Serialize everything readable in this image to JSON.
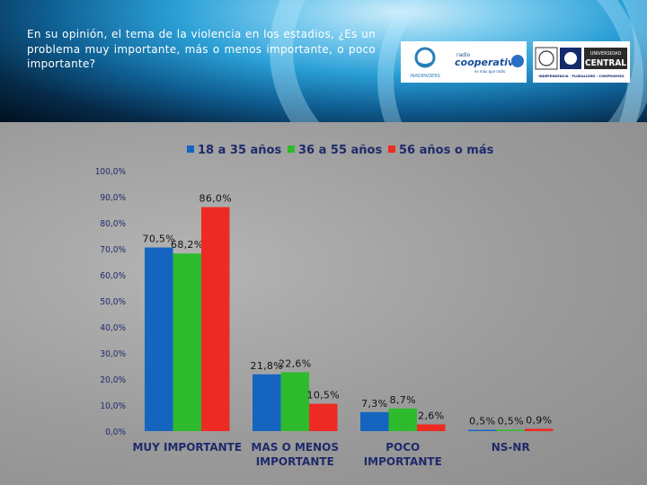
{
  "header": {
    "question": "En su opinión, el tema de la violencia en los estadios, ¿Es un problema muy importante, más o menos importante, o poco importante?"
  },
  "logos": {
    "inpaf": {
      "text": "INADIPADERS"
    },
    "cooperativa": {
      "top": "radio",
      "main": "cooperativa",
      "sub": "es más que radio"
    },
    "central": {
      "line1": "UNIVERSIDAD",
      "line2": "CENTRAL",
      "tagline": "INDEPENDENCIA · PLURALISMO · COMPROMISO"
    }
  },
  "colors": {
    "series1": "#1565c0",
    "series2": "#2dbb2d",
    "series3": "#ee2a24",
    "axis_text": "#1f2a6b"
  },
  "chart_data": {
    "type": "bar",
    "title": "",
    "xlabel": "",
    "ylabel": "",
    "categories": [
      "MUY IMPORTANTE",
      "MAS O MENOS IMPORTANTE",
      "POCO IMPORTANTE",
      "NS-NR"
    ],
    "category_lines": [
      [
        "MUY IMPORTANTE"
      ],
      [
        "MAS O MENOS",
        "IMPORTANTE"
      ],
      [
        "POCO",
        "IMPORTANTE"
      ],
      [
        "NS-NR"
      ]
    ],
    "series": [
      {
        "name": "18 a 35 años",
        "values": [
          70.5,
          21.8,
          7.3,
          0.5
        ],
        "labels": [
          "70,5%",
          "21,8%",
          "7,3%",
          "0,5%"
        ]
      },
      {
        "name": "36 a 55 años",
        "values": [
          68.2,
          22.6,
          8.7,
          0.5
        ],
        "labels": [
          "68,2%",
          "22,6%",
          "8,7%",
          "0,5%"
        ]
      },
      {
        "name": "56 años o más",
        "values": [
          86.0,
          10.5,
          2.6,
          0.9
        ],
        "labels": [
          "86,0%",
          "10,5%",
          "2,6%",
          "0,9%"
        ]
      }
    ],
    "ylim": [
      0,
      100
    ],
    "yticks": [
      0,
      10,
      20,
      30,
      40,
      50,
      60,
      70,
      80,
      90,
      100
    ],
    "ytick_labels": [
      "0,0%",
      "10,0%",
      "20,0%",
      "30,0%",
      "40,0%",
      "50,0%",
      "60,0%",
      "70,0%",
      "80,0%",
      "90,0%",
      "100,0%"
    ],
    "legend_position": "top",
    "grid": false
  }
}
